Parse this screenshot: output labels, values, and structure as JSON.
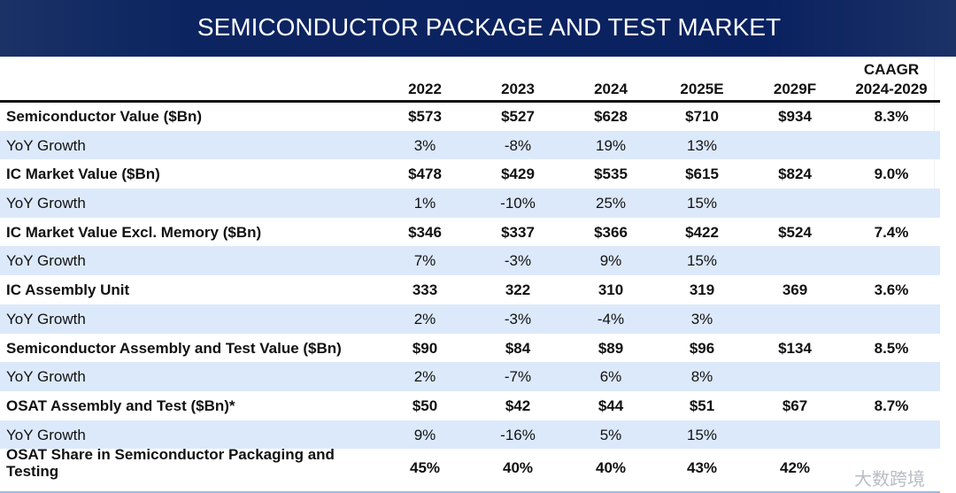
{
  "title": "SEMICONDUCTOR PACKAGE AND TEST MARKET",
  "columns": [
    "2022",
    "2023",
    "2024",
    "2025E",
    "2029F"
  ],
  "caagr_label": "CAAGR",
  "caagr_period": "2024-2029",
  "rows": [
    {
      "label": "Semiconductor Value ($Bn)",
      "values": [
        "$573",
        "$527",
        "$628",
        "$710",
        "$934",
        "8.3%"
      ]
    },
    {
      "label": "YoY Growth",
      "values": [
        "3%",
        "-8%",
        "19%",
        "13%",
        "",
        ""
      ]
    },
    {
      "label": "IC Market Value ($Bn)",
      "values": [
        "$478",
        "$429",
        "$535",
        "$615",
        "$824",
        "9.0%"
      ]
    },
    {
      "label": "YoY Growth",
      "values": [
        "1%",
        "-10%",
        "25%",
        "15%",
        "",
        ""
      ]
    },
    {
      "label": "IC Market Value Excl. Memory ($Bn)",
      "values": [
        "$346",
        "$337",
        "$366",
        "$422",
        "$524",
        "7.4%"
      ]
    },
    {
      "label": "YoY Growth",
      "values": [
        "7%",
        "-3%",
        "9%",
        "15%",
        "",
        ""
      ]
    },
    {
      "label": "IC Assembly Unit",
      "values": [
        "333",
        "322",
        "310",
        "319",
        "369",
        "3.6%"
      ]
    },
    {
      "label": "YoY Growth",
      "values": [
        "2%",
        "-3%",
        "-4%",
        "3%",
        "",
        ""
      ]
    },
    {
      "label": "Semiconductor Assembly and Test Value ($Bn)",
      "values": [
        "$90",
        "$84",
        "$89",
        "$96",
        "$134",
        "8.5%"
      ]
    },
    {
      "label": "YoY Growth",
      "values": [
        "2%",
        "-7%",
        "6%",
        "8%",
        "",
        ""
      ]
    },
    {
      "label": "OSAT Assembly and Test ($Bn)*",
      "values": [
        "$50",
        "$42",
        "$44",
        "$51",
        "$67",
        "8.7%"
      ]
    },
    {
      "label": "YoY Growth",
      "values": [
        "9%",
        "-16%",
        "5%",
        "15%",
        "",
        ""
      ]
    },
    {
      "label": "OSAT Share in Semiconductor Packaging and Testing",
      "values": [
        "45%",
        "40%",
        "40%",
        "43%",
        "42%",
        ""
      ]
    }
  ],
  "watermark": "大数跨境"
}
